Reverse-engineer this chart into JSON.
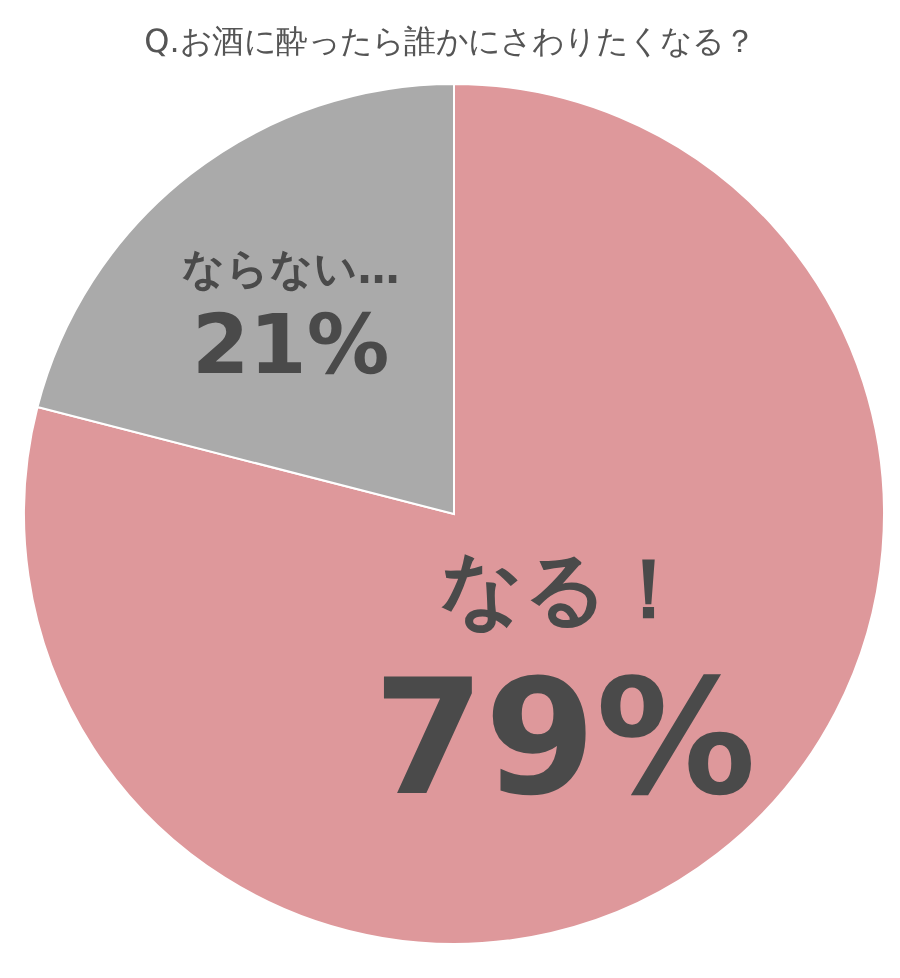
{
  "chart_data": {
    "type": "pie",
    "title": "Q.お酒に酔ったら誰かにさわりたくなる？",
    "categories": [
      "なる！",
      "ならない…"
    ],
    "values": [
      79,
      21
    ],
    "value_labels": [
      "79%",
      "21%"
    ],
    "colors": [
      "#de989b",
      "#aaaaaa"
    ]
  }
}
